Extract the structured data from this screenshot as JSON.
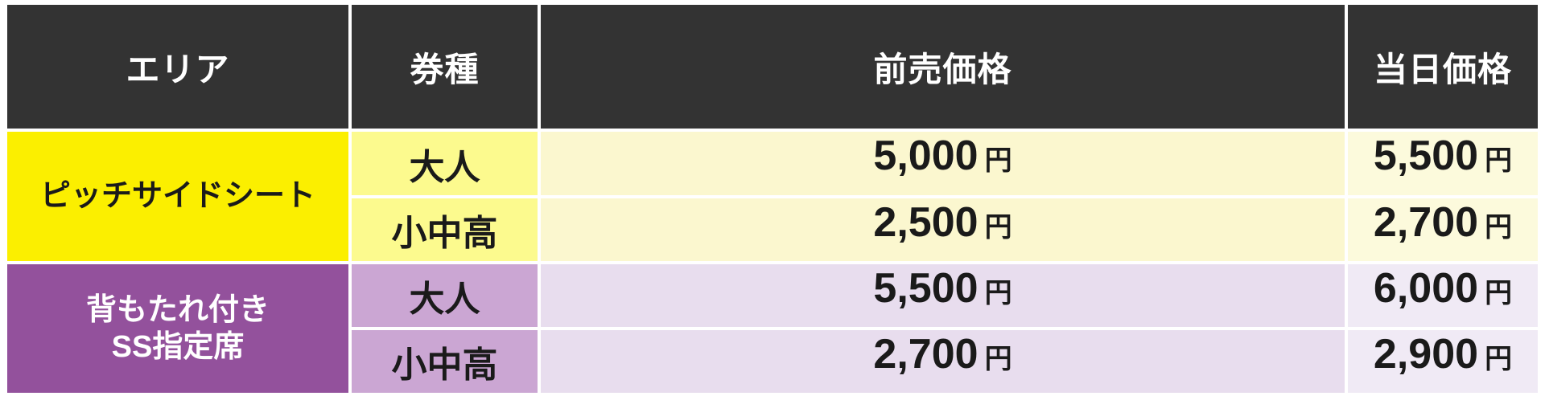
{
  "table": {
    "headers": [
      {
        "label": "エリア"
      },
      {
        "label": "券種"
      },
      {
        "label": "前売価格"
      },
      {
        "label": "当日価格"
      }
    ],
    "currency_suffix": "円",
    "groups": [
      {
        "area_lines": {
          "0": "ピッチサイドシート"
        },
        "rows": [
          {
            "ticket": "大人",
            "advance": "5,000",
            "day": "5,500"
          },
          {
            "ticket": "小中高",
            "advance": "2,500",
            "day": "2,700"
          }
        ]
      },
      {
        "area_lines": {
          "0": "背もたれ付き",
          "1": "SS指定席"
        },
        "rows": [
          {
            "ticket": "大人",
            "advance": "5,500",
            "day": "6,000"
          },
          {
            "ticket": "小中高",
            "advance": "2,700",
            "day": "2,900"
          }
        ]
      }
    ]
  },
  "colors": {
    "border": "#ffffff",
    "header_bg": "#333333",
    "header_text": "#ffffff",
    "data_text": "#1a1a1a",
    "area_yellow": "#fbef00",
    "ticket_yellow": "#fcfa8e",
    "price_yellow": "#fbf7cf",
    "price_yellow_last": "#fcfadc",
    "area_purple": "#93519c",
    "ticket_purple": "#cba6d3",
    "price_purple": "#e8ddee",
    "price_purple_last": "#f0eaf5"
  }
}
